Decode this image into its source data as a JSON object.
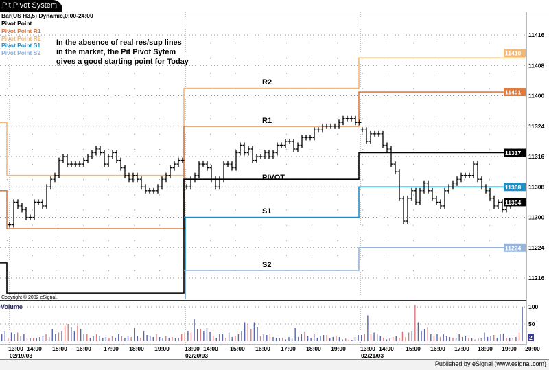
{
  "window": {
    "title": "Pit Pivot System"
  },
  "legend": {
    "symbol": "Bar(US H3,5) Dynamic,0:00-24:00",
    "items": [
      {
        "label": "Pivot Point",
        "color": "#000000"
      },
      {
        "label": "Pivot Point R1",
        "color": "#e07a3c"
      },
      {
        "label": "Pivot Point R2",
        "color": "#f2b878"
      },
      {
        "label": "Pivot Point S1",
        "color": "#1e90c8"
      },
      {
        "label": "Pivot Point S2",
        "color": "#94b4dc"
      }
    ]
  },
  "annotation": [
    "In the absence of real res/sup lines",
    "in the market, the Pit Pivot Sytem",
    "gives a good starting point for Today"
  ],
  "level_labels": {
    "r2": "R2",
    "r1": "R1",
    "pivot": "PIVOT",
    "s1": "S1",
    "s2": "S2"
  },
  "copyright": "Copyright © 2002 eSignal.",
  "footer": {
    "published": "Published by eSignal (www.esignal.com)"
  },
  "chart_data": {
    "type": "bar",
    "price_axis": {
      "ticks": [
        "11416",
        "11408",
        "11400",
        "11324",
        "11316",
        "11308",
        "11300",
        "11224",
        "11216"
      ],
      "range": [
        "11212",
        "11420"
      ],
      "format": "handle + 32nds"
    },
    "current_tags": [
      {
        "level": "r2",
        "value": "11410",
        "color": "#f2b878"
      },
      {
        "level": "r1",
        "value": "11401",
        "color": "#e07a3c"
      },
      {
        "level": "pivot",
        "value": "11317",
        "color": "#000000"
      },
      {
        "level": "s1",
        "value": "11308",
        "color": "#1e90c8"
      },
      {
        "level": "s2",
        "value": "11224",
        "color": "#94b4dc"
      },
      {
        "level": "last",
        "value": "11304",
        "color": "#000000"
      }
    ],
    "pivot_levels": [
      {
        "day": "prior",
        "r2": 11325,
        "r1": 11307,
        "pivot": 11220
      },
      {
        "day": "02/19/03",
        "r2": 11311,
        "r1": 11229,
        "pivot": 11212
      },
      {
        "day": "02/20/03",
        "r2": 11402,
        "r1": 11324,
        "pivot": 11310,
        "s1": 11300,
        "s2": 11218
      },
      {
        "day": "02/21/03",
        "r2": 11410,
        "r1": 11401,
        "pivot": 11317,
        "s1": 11308,
        "s2": 11224
      }
    ],
    "days": [
      {
        "date": "02/19/03",
        "closes": [
          11230,
          11304,
          11303,
          11302,
          11300,
          11300,
          11304,
          11304,
          11303,
          11308,
          11310,
          11311,
          11315,
          11316,
          11314,
          11314,
          11314,
          11314,
          11315,
          11316,
          11317,
          11318,
          11317,
          11314,
          11316,
          11317,
          11315,
          11313,
          11311,
          11310,
          11311,
          11310,
          11308,
          11307,
          11307,
          11307,
          11308,
          11310,
          11311,
          11313,
          11314,
          11315,
          11315
        ]
      },
      {
        "date": "02/20/03",
        "closes": [
          11308,
          11310,
          11311,
          11314,
          11314,
          11313,
          11310,
          11308,
          11310,
          11314,
          11314,
          11313,
          11317,
          11319,
          11317,
          11318,
          11315,
          11316,
          11316,
          11317,
          11316,
          11317,
          11319,
          11319,
          11320,
          11320,
          11318,
          11319,
          11321,
          11321,
          11321,
          11323,
          11323,
          11324,
          11324,
          11324,
          11324,
          11325,
          11326,
          11326,
          11326,
          11325,
          11325
        ]
      },
      {
        "date": "02/21/03",
        "closes": [
          11323,
          11320,
          11322,
          11322,
          11322,
          11319,
          11318,
          11314,
          11312,
          11305,
          11231,
          11305,
          11307,
          11304,
          11307,
          11309,
          11307,
          11305,
          11304,
          11303,
          11307,
          11308,
          11309,
          11310,
          11311,
          11311,
          11311,
          11314,
          11310,
          11308,
          11307,
          11305,
          11303,
          11304,
          11302,
          11303,
          11304
        ]
      }
    ],
    "time_labels": [
      "13:00",
      "14:00",
      "15:00",
      "16:00",
      "17:00",
      "18:00",
      "19:00",
      "13:00",
      "14:00",
      "15:00",
      "16:00",
      "17:00",
      "18:00",
      "19:00",
      "13:00",
      "14:00",
      "15:00",
      "16:00",
      "17:00",
      "18:00",
      "19:00",
      "20:00"
    ],
    "date_labels": [
      "02/19/03",
      "02/20/03",
      "02/21/03"
    ],
    "volume": {
      "title": "Volume",
      "ticks": [
        "100",
        "50",
        "2"
      ],
      "range": [
        0,
        100
      ],
      "colors": {
        "b": "#5a64a8",
        "r": "#e07878"
      },
      "values": [
        20,
        30,
        10,
        25,
        20,
        25,
        15,
        20,
        10,
        8,
        10,
        10,
        12,
        15,
        20,
        12,
        35,
        20,
        25,
        30,
        45,
        50,
        40,
        30,
        45,
        35,
        20,
        20,
        10,
        15,
        20,
        15,
        10,
        12,
        10,
        15,
        10,
        20,
        15,
        10,
        15,
        12,
        38,
        15,
        10,
        30,
        18,
        15,
        12,
        20,
        12,
        10,
        15,
        10,
        12,
        8,
        10,
        20,
        25,
        30,
        25,
        65,
        35,
        35,
        30,
        38,
        28,
        15,
        10,
        20,
        20,
        10,
        25,
        12,
        15,
        20,
        30,
        55,
        50,
        35,
        55,
        40,
        15,
        20,
        18,
        22,
        12,
        10,
        8,
        10,
        5,
        12,
        10,
        38,
        12,
        20,
        28,
        15,
        10,
        20,
        10,
        15,
        18,
        18,
        10,
        12,
        15,
        12,
        5,
        8,
        5,
        3,
        12,
        18,
        18,
        20,
        75,
        20,
        25,
        22,
        15,
        10,
        5,
        8,
        12,
        15,
        10,
        28,
        12,
        25,
        30,
        105,
        55,
        30,
        35,
        40,
        20,
        15,
        20,
        12,
        20,
        15,
        12,
        10,
        8,
        20,
        12,
        15,
        10,
        8,
        5,
        8,
        8,
        25,
        12,
        15,
        18,
        10,
        20,
        22,
        10,
        10,
        8,
        12,
        25,
        100
      ],
      "bar_colors": "bbrbbrbbrbrbbbrbbbrbrrbbrbbrbbrbbbrrbbrbbrbbrbbbbrbbrbrbbrrbrbbrbbbrbbbrbbrbbbrrbbrbbrbbbrbbbbbbrbbbbbbrbbrbbrrbbbbrbrbbbrbbrbrrrrbrbbbrbrbrbbbrbbbbrbrbrbbbrbbbrbrbrb"
    }
  }
}
